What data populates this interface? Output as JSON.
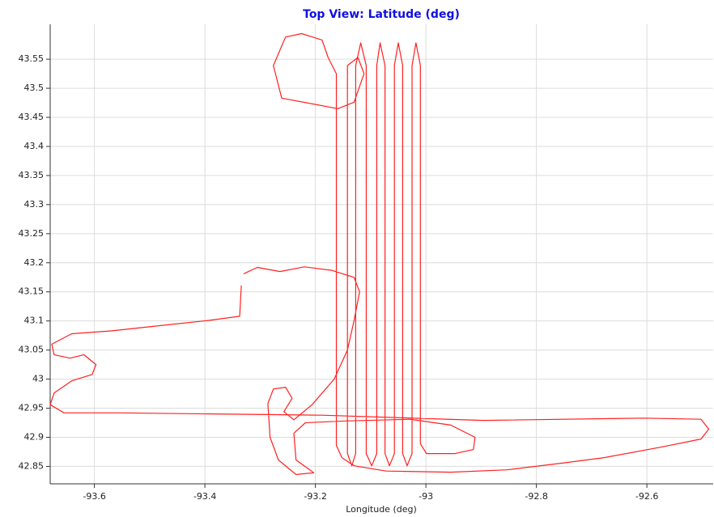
{
  "chart_data": {
    "type": "line",
    "title": "Top View: Latitude (deg)",
    "xlabel": "Longitude (deg)",
    "color": "#ff2020",
    "grid": true,
    "xlim": [
      -93.68,
      -92.48
    ],
    "ylim": [
      42.82,
      43.61
    ],
    "xticks": [
      -93.6,
      -93.4,
      -93.2,
      -93,
      -92.8,
      -92.6
    ],
    "yticks": [
      42.85,
      42.9,
      42.95,
      43,
      43.05,
      43.1,
      43.15,
      43.2,
      43.25,
      43.3,
      43.35,
      43.4,
      43.45,
      43.5,
      43.55
    ],
    "x": [
      -93.334,
      -93.337,
      -93.393,
      -93.48,
      -93.568,
      -93.641,
      -93.677,
      -93.673,
      -93.644,
      -93.619,
      -93.597,
      -93.604,
      -93.641,
      -93.673,
      -93.68,
      -93.655,
      -93.553,
      -93.188,
      -92.896,
      -92.604,
      -92.502,
      -92.488,
      -92.502,
      -92.575,
      -92.677,
      -92.75,
      -92.853,
      -92.955,
      -93.072,
      -93.13,
      -93.152,
      -93.162,
      -93.162,
      -93.177,
      -93.188,
      -93.225,
      -93.254,
      -93.276,
      -93.261,
      -93.159,
      -93.13,
      -93.112,
      -93.123,
      -93.142,
      -93.142,
      -93.134,
      -93.127,
      -93.127,
      -93.118,
      -93.108,
      -93.108,
      -93.098,
      -93.089,
      -93.089,
      -93.083,
      -93.074,
      -93.074,
      -93.066,
      -93.057,
      -93.057,
      -93.05,
      -93.042,
      -93.042,
      -93.034,
      -93.025,
      -93.025,
      -93.018,
      -93.01,
      -93.01,
      -92.999,
      -92.947,
      -92.914,
      -92.911,
      -92.955,
      -93.028,
      -93.145,
      -93.218,
      -93.239,
      -93.235,
      -93.203,
      -93.235,
      -93.267,
      -93.282,
      -93.286,
      -93.276,
      -93.254,
      -93.242,
      -93.257,
      -93.239,
      -93.206,
      -93.166,
      -93.142,
      -93.13,
      -93.12,
      -93.13,
      -93.171,
      -93.22,
      -93.264,
      -93.305,
      -93.33
    ],
    "values": [
      43.161,
      43.108,
      43.101,
      43.092,
      43.083,
      43.078,
      43.06,
      43.042,
      43.036,
      43.042,
      43.025,
      43.008,
      42.997,
      42.976,
      42.956,
      42.942,
      42.942,
      42.938,
      42.929,
      42.933,
      42.931,
      42.914,
      42.897,
      42.883,
      42.865,
      42.856,
      42.844,
      42.84,
      42.842,
      42.851,
      42.865,
      42.886,
      43.525,
      43.553,
      43.583,
      43.594,
      43.588,
      43.539,
      43.483,
      43.465,
      43.476,
      43.525,
      43.553,
      43.539,
      42.872,
      42.851,
      42.872,
      43.539,
      43.578,
      43.539,
      42.872,
      42.851,
      42.872,
      43.539,
      43.578,
      43.539,
      42.872,
      42.851,
      42.872,
      43.539,
      43.578,
      43.539,
      42.872,
      42.851,
      42.872,
      43.539,
      43.578,
      43.539,
      42.889,
      42.872,
      42.872,
      42.879,
      42.9,
      42.921,
      42.931,
      42.928,
      42.925,
      42.907,
      42.861,
      42.839,
      42.836,
      42.861,
      42.9,
      42.958,
      42.983,
      42.986,
      42.967,
      42.944,
      42.93,
      42.956,
      43.0,
      43.05,
      43.101,
      43.15,
      43.175,
      43.187,
      43.193,
      43.185,
      43.192,
      43.181
    ]
  }
}
